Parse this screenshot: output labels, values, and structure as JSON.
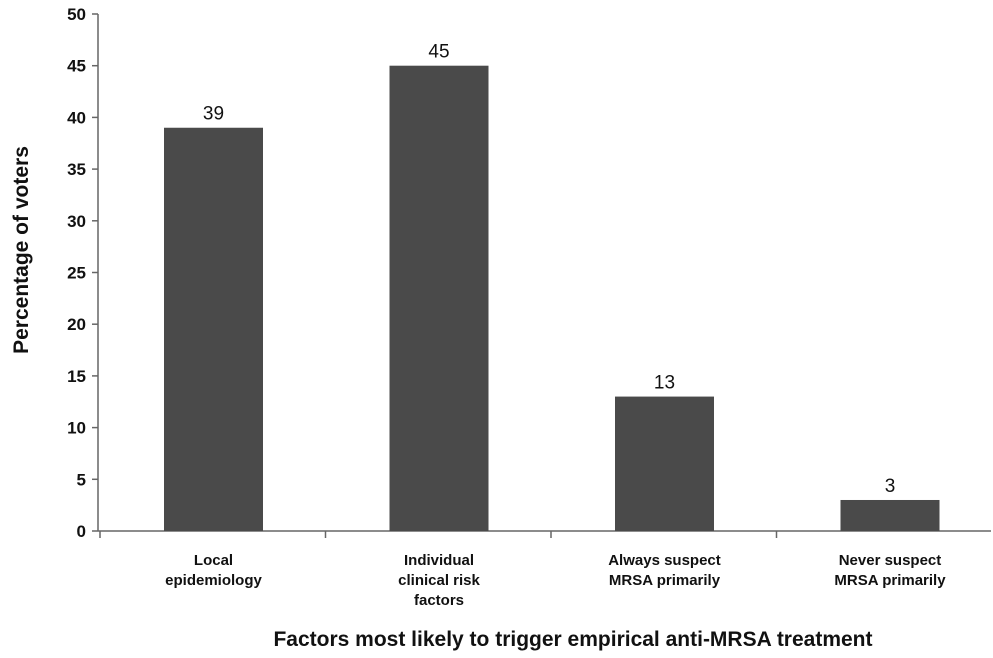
{
  "chart_data": {
    "type": "bar",
    "categories": [
      [
        "Local",
        "epidemiology"
      ],
      [
        "Individual",
        "clinical risk",
        "factors"
      ],
      [
        "Always suspect",
        "MRSA primarily"
      ],
      [
        "Never suspect",
        "MRSA primarily"
      ]
    ],
    "values": [
      39,
      45,
      13,
      3
    ],
    "data_labels": [
      "39",
      "45",
      "13",
      "3"
    ],
    "title": "",
    "xlabel": "Factors most likely to trigger empirical anti-MRSA treatment",
    "ylabel": "Percentage of voters",
    "ylim": [
      0,
      50
    ],
    "yticks": [
      "0",
      "5",
      "10",
      "15",
      "20",
      "25",
      "30",
      "35",
      "40",
      "45",
      "50"
    ],
    "grid": false,
    "bar_color": "#4a4a4a",
    "axis_color": "#666666"
  }
}
